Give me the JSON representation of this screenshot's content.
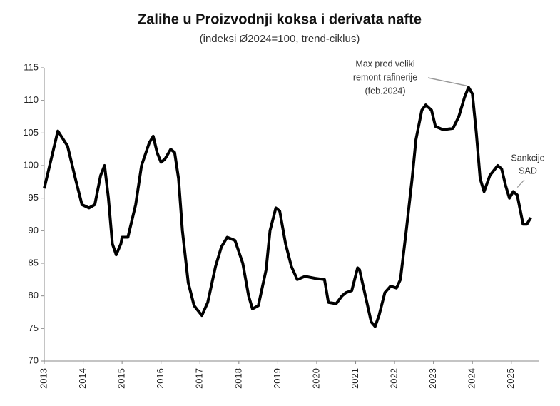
{
  "chart_data": {
    "type": "line",
    "title": "Zalihe u Proizvodnji koksa i derivata nafte",
    "subtitle": "(indeksi Ø2024=100, trend-ciklus)",
    "xlim": [
      2013,
      2025.7
    ],
    "xticks": [
      2013,
      2014,
      2015,
      2016,
      2017,
      2018,
      2019,
      2020,
      2021,
      2022,
      2023,
      2024,
      2025
    ],
    "ylim": [
      70,
      115
    ],
    "yticks": [
      70,
      75,
      80,
      85,
      90,
      95,
      100,
      105,
      110,
      115
    ],
    "grid": false,
    "annotations": [
      {
        "lines": [
          "Max pred veliki",
          "remont rafinerije",
          "(feb.2024)"
        ],
        "x": 2023.9,
        "y": 112
      },
      {
        "lines": [
          "Sankcije",
          "SAD"
        ],
        "x": 2025.1,
        "y": 96
      }
    ],
    "x": [
      2013,
      2013.35,
      2013.6,
      2013.8,
      2013.97,
      2014.15,
      2014.3,
      2014.45,
      2014.55,
      2014.65,
      2014.75,
      2014.85,
      2014.97,
      2015.0,
      2015.15,
      2015.35,
      2015.5,
      2015.7,
      2015.8,
      2015.9,
      2016.0,
      2016.1,
      2016.25,
      2016.35,
      2016.45,
      2016.55,
      2016.7,
      2016.85,
      2017.05,
      2017.2,
      2017.4,
      2017.55,
      2017.7,
      2017.9,
      2018.1,
      2018.25,
      2018.35,
      2018.5,
      2018.7,
      2018.8,
      2018.95,
      2019.05,
      2019.2,
      2019.35,
      2019.5,
      2019.7,
      2019.95,
      2020.2,
      2020.3,
      2020.5,
      2020.65,
      2020.75,
      2020.9,
      2021.05,
      2021.1,
      2021.25,
      2021.4,
      2021.5,
      2021.6,
      2021.75,
      2021.9,
      2022.05,
      2022.15,
      2022.3,
      2022.45,
      2022.55,
      2022.7,
      2022.8,
      2022.95,
      2023.05,
      2023.25,
      2023.5,
      2023.65,
      2023.8,
      2023.9,
      2024.0,
      2024.1,
      2024.2,
      2024.3,
      2024.45,
      2024.65,
      2024.75,
      2024.85,
      2024.95,
      2025.05,
      2025.15,
      2025.3,
      2025.4,
      2025.5
    ],
    "series": [
      {
        "color": "#000000",
        "values": [
          96.5,
          105.3,
          103,
          98,
          94,
          93.5,
          94,
          98.5,
          100,
          95,
          88,
          86.3,
          88,
          89,
          89,
          94,
          100,
          103.5,
          104.5,
          102,
          100.5,
          101,
          102.5,
          102,
          98,
          90,
          82,
          78.5,
          77,
          79,
          84.5,
          87.5,
          89,
          88.5,
          85,
          80,
          78,
          78.5,
          84,
          90,
          93.5,
          93,
          88,
          84.5,
          82.5,
          83,
          82.7,
          82.5,
          79,
          78.8,
          80,
          80.5,
          80.8,
          84.3,
          84,
          80,
          76,
          75.3,
          77,
          80.5,
          81.5,
          81.2,
          82.5,
          90,
          98,
          104,
          108.5,
          109.3,
          108.5,
          106,
          105.5,
          105.7,
          107.5,
          110.5,
          112,
          111,
          105,
          98,
          96,
          98.5,
          100,
          99.5,
          97,
          95,
          96,
          95.5,
          91,
          91,
          92
        ]
      }
    ]
  }
}
